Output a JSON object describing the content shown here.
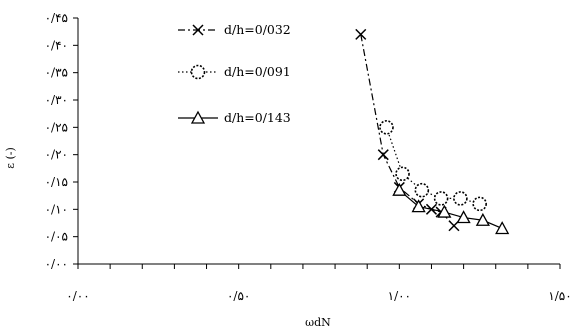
{
  "chart_data": {
    "type": "scatter",
    "title": "",
    "xlabel": "ωdN",
    "ylabel": "ε (-)",
    "xlim": [
      0,
      1.5
    ],
    "ylim": [
      0,
      0.45
    ],
    "x_ticks": [
      {
        "value": 0,
        "label": "۰/۰۰"
      },
      {
        "value": 0.5,
        "label": "۰/۵۰"
      },
      {
        "value": 1.0,
        "label": "۱/۰۰"
      },
      {
        "value": 1.5,
        "label": "۱/۵۰"
      }
    ],
    "y_ticks": [
      {
        "value": 0,
        "label": "۰/۰۰"
      },
      {
        "value": 0.05,
        "label": "۰/۰۵"
      },
      {
        "value": 0.1,
        "label": "۰/۱۰"
      },
      {
        "value": 0.15,
        "label": "۰/۱۵"
      },
      {
        "value": 0.2,
        "label": "۰/۲۰"
      },
      {
        "value": 0.25,
        "label": "۰/۲۵"
      },
      {
        "value": 0.3,
        "label": "۰/۳۰"
      },
      {
        "value": 0.35,
        "label": "۰/۳۵"
      },
      {
        "value": 0.4,
        "label": "۰/۴۰"
      },
      {
        "value": 0.45,
        "label": "۰/۴۵"
      }
    ],
    "grid": false,
    "legend_position": "top-left",
    "series": [
      {
        "name": "d/h=0/032",
        "marker": "x",
        "line": "dash-dot",
        "color": "#000000",
        "x": [
          0.88,
          0.95,
          1.0,
          1.06,
          1.1,
          1.13,
          1.17
        ],
        "y": [
          0.42,
          0.2,
          0.14,
          0.11,
          0.1,
          0.095,
          0.07
        ]
      },
      {
        "name": "d/h=0/091",
        "marker": "circle-dotted",
        "line": "dotted",
        "color": "#000000",
        "x": [
          0.96,
          1.01,
          1.07,
          1.13,
          1.19,
          1.25
        ],
        "y": [
          0.25,
          0.165,
          0.135,
          0.12,
          0.12,
          0.11
        ]
      },
      {
        "name": "d/h=0/143",
        "marker": "triangle",
        "line": "solid",
        "color": "#000000",
        "x": [
          1.0,
          1.06,
          1.14,
          1.2,
          1.26,
          1.32
        ],
        "y": [
          0.135,
          0.105,
          0.095,
          0.085,
          0.08,
          0.065
        ]
      }
    ]
  }
}
